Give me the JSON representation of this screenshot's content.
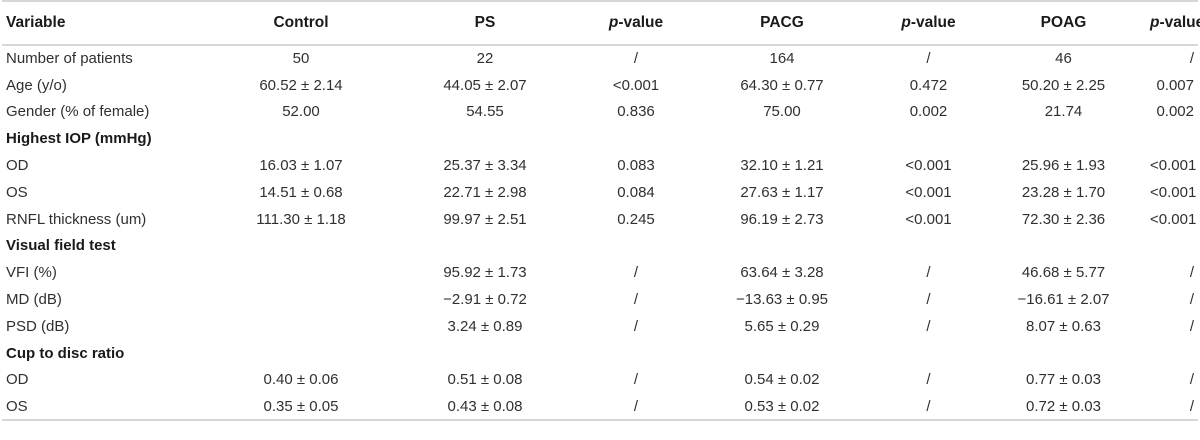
{
  "table": {
    "headers": [
      "Variable",
      "Control",
      "PS",
      "p-value",
      "PACG",
      "p-value",
      "POAG",
      "p-value"
    ],
    "p_prefix": "p",
    "p_suffix": "-value",
    "rows": [
      {
        "type": "data",
        "cells": [
          "Number of patients",
          "50",
          "22",
          "/",
          "164",
          "/",
          "46",
          "/"
        ]
      },
      {
        "type": "data",
        "cells": [
          "Age (y/o)",
          "60.52 ± 2.14",
          "44.05 ± 2.07",
          "<0.001",
          "64.30 ± 0.77",
          "0.472",
          "50.20 ± 2.25",
          "0.007"
        ]
      },
      {
        "type": "data",
        "cells": [
          "Gender (% of female)",
          "52.00",
          "54.55",
          "0.836",
          "75.00",
          "0.002",
          "21.74",
          "0.002"
        ]
      },
      {
        "type": "section",
        "label": "Highest IOP (mmHg)"
      },
      {
        "type": "data",
        "cells": [
          "OD",
          "16.03 ± 1.07",
          "25.37 ± 3.34",
          "0.083",
          "32.10 ± 1.21",
          "<0.001",
          "25.96 ± 1.93",
          "<0.001"
        ]
      },
      {
        "type": "data",
        "cells": [
          "OS",
          "14.51 ± 0.68",
          "22.71 ± 2.98",
          "0.084",
          "27.63 ± 1.17",
          "<0.001",
          "23.28 ± 1.70",
          "<0.001"
        ]
      },
      {
        "type": "data",
        "cells": [
          "RNFL thickness (um)",
          "111.30 ± 1.18",
          "99.97 ± 2.51",
          "0.245",
          "96.19 ± 2.73",
          "<0.001",
          "72.30 ± 2.36",
          "<0.001"
        ]
      },
      {
        "type": "section",
        "label": "Visual field test"
      },
      {
        "type": "data",
        "cells": [
          "VFI (%)",
          "",
          "95.92 ± 1.73",
          "/",
          "63.64 ± 3.28",
          "/",
          "46.68 ± 5.77",
          "/"
        ]
      },
      {
        "type": "data",
        "cells": [
          "MD (dB)",
          "",
          "−2.91 ± 0.72",
          "/",
          "−13.63 ± 0.95",
          "/",
          "−16.61 ± 2.07",
          "/"
        ]
      },
      {
        "type": "data",
        "cells": [
          "PSD (dB)",
          "",
          "3.24 ± 0.89",
          "/",
          "5.65 ± 0.29",
          "/",
          "8.07 ± 0.63",
          "/"
        ]
      },
      {
        "type": "section",
        "label": "Cup to disc ratio"
      },
      {
        "type": "data",
        "cells": [
          "OD",
          "0.40 ± 0.06",
          "0.51 ± 0.08",
          "/",
          "0.54 ± 0.02",
          "/",
          "0.77 ± 0.03",
          "/"
        ]
      },
      {
        "type": "data",
        "cells": [
          "OS",
          "0.35 ± 0.05",
          "0.43 ± 0.08",
          "/",
          "0.53 ± 0.02",
          "/",
          "0.72 ± 0.03",
          "/"
        ]
      }
    ]
  }
}
